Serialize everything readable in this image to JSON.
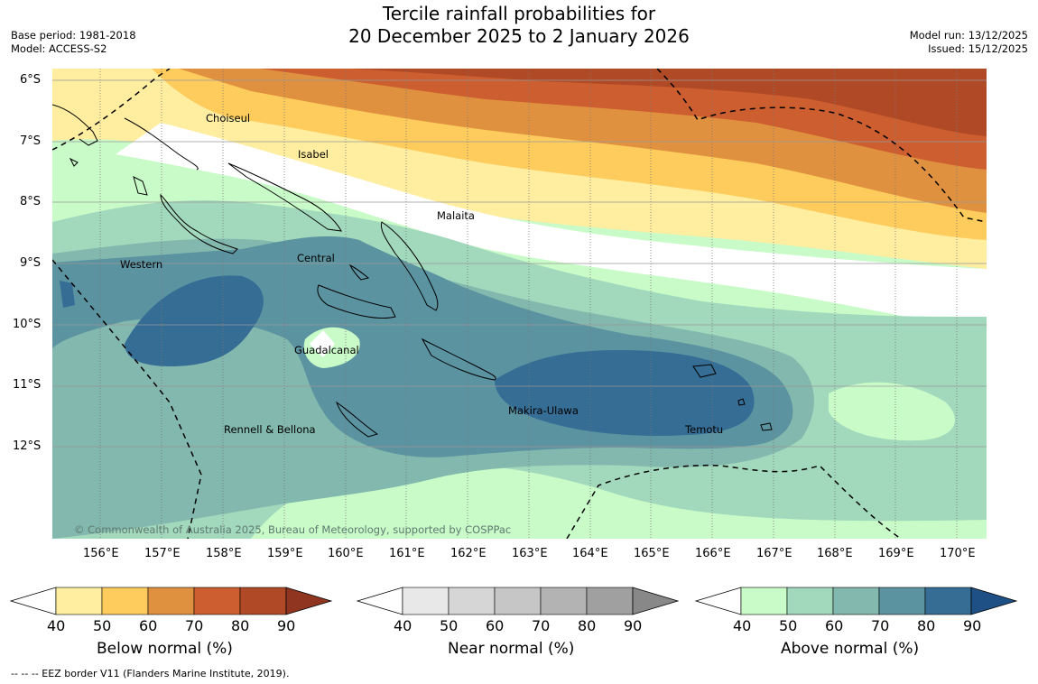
{
  "title": {
    "line1": "Tercile rainfall probabilities for",
    "line2": "20 December 2025 to 2 January 2026"
  },
  "meta_left": {
    "base_period": "Base period: 1981-2018",
    "model": "Model: ACCESS-S2"
  },
  "meta_right": {
    "model_run": "Model run: 13/12/2025",
    "issued": "Issued: 15/12/2025"
  },
  "copyright": "© Commonwealth of Australia 2025, Bureau of Meteorology, supported by COSPPac",
  "y_axis": [
    "6°S",
    "7°S",
    "8°S",
    "9°S",
    "10°S",
    "11°S",
    "12°S"
  ],
  "x_axis": [
    "156°E",
    "157°E",
    "158°E",
    "159°E",
    "160°E",
    "161°E",
    "162°E",
    "163°E",
    "164°E",
    "165°E",
    "166°E",
    "167°E",
    "168°E",
    "169°E",
    "170°E"
  ],
  "regions": [
    {
      "name": "Choiseul"
    },
    {
      "name": "Isabel"
    },
    {
      "name": "Malaita"
    },
    {
      "name": "Central"
    },
    {
      "name": "Western"
    },
    {
      "name": "Guadalcanal"
    },
    {
      "name": "Makira-Ulawa"
    },
    {
      "name": "Temotu"
    },
    {
      "name": "Rennell & Bellona"
    }
  ],
  "colorbars": [
    {
      "title": "Below normal (%)",
      "ticks": [
        "40",
        "50",
        "60",
        "70",
        "80",
        "90"
      ],
      "colors": [
        "#ffeda0",
        "#fecc5c",
        "#e0913f",
        "#cc5e2f",
        "#b04a26",
        "#903520"
      ]
    },
    {
      "title": "Near normal (%)",
      "ticks": [
        "40",
        "50",
        "60",
        "70",
        "80",
        "90"
      ],
      "colors": [
        "#e8e8e8",
        "#d6d6d6",
        "#c6c6c6",
        "#b3b3b3",
        "#a0a0a0",
        "#888888"
      ]
    },
    {
      "title": "Above normal (%)",
      "ticks": [
        "40",
        "50",
        "60",
        "70",
        "80",
        "90"
      ],
      "colors": [
        "#c8fbc8",
        "#a2d8bc",
        "#82b8ad",
        "#5b93a0",
        "#356d95",
        "#1e4f85"
      ]
    }
  ],
  "footnote": "--  --  -- EEZ border V11 (Flanders Marine Institute, 2019)."
}
